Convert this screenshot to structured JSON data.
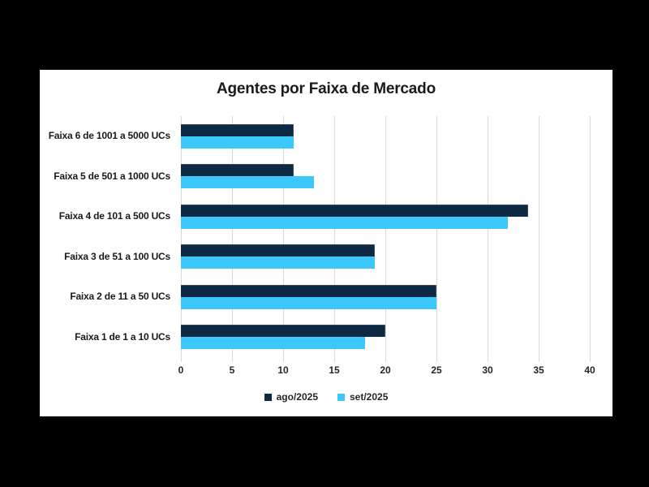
{
  "page": {
    "background_color": "#000000",
    "panel_background_color": "#ffffff"
  },
  "chart_data": {
    "type": "bar",
    "orientation": "horizontal",
    "title": "Agentes por Faixa de Mercado",
    "categories": [
      "Faixa 6 de 1001 a 5000 UCs",
      "Faixa 5 de 501 a 1000 UCs",
      "Faixa 4 de 101 a 500 UCs",
      "Faixa 3 de 51 a 100 UCs",
      "Faixa 2 de 11 a 50 UCs",
      "Faixa 1 de 1 a 10 UCs"
    ],
    "series": [
      {
        "name": "ago/2025",
        "color": "#0e2944",
        "values": [
          11,
          11,
          34,
          19,
          25,
          20
        ]
      },
      {
        "name": "set/2025",
        "color": "#3dc8fc",
        "values": [
          11,
          13,
          32,
          19,
          25,
          18
        ]
      }
    ],
    "x_axis": {
      "min": 0,
      "max": 40,
      "tick_step": 5,
      "ticks": [
        0,
        5,
        10,
        15,
        20,
        25,
        30,
        35,
        40
      ]
    },
    "grid": true,
    "gridline_color": "#d9d9d9",
    "legend_position": "bottom",
    "title_color": "#1a1a1a",
    "label_color": "#262626"
  }
}
